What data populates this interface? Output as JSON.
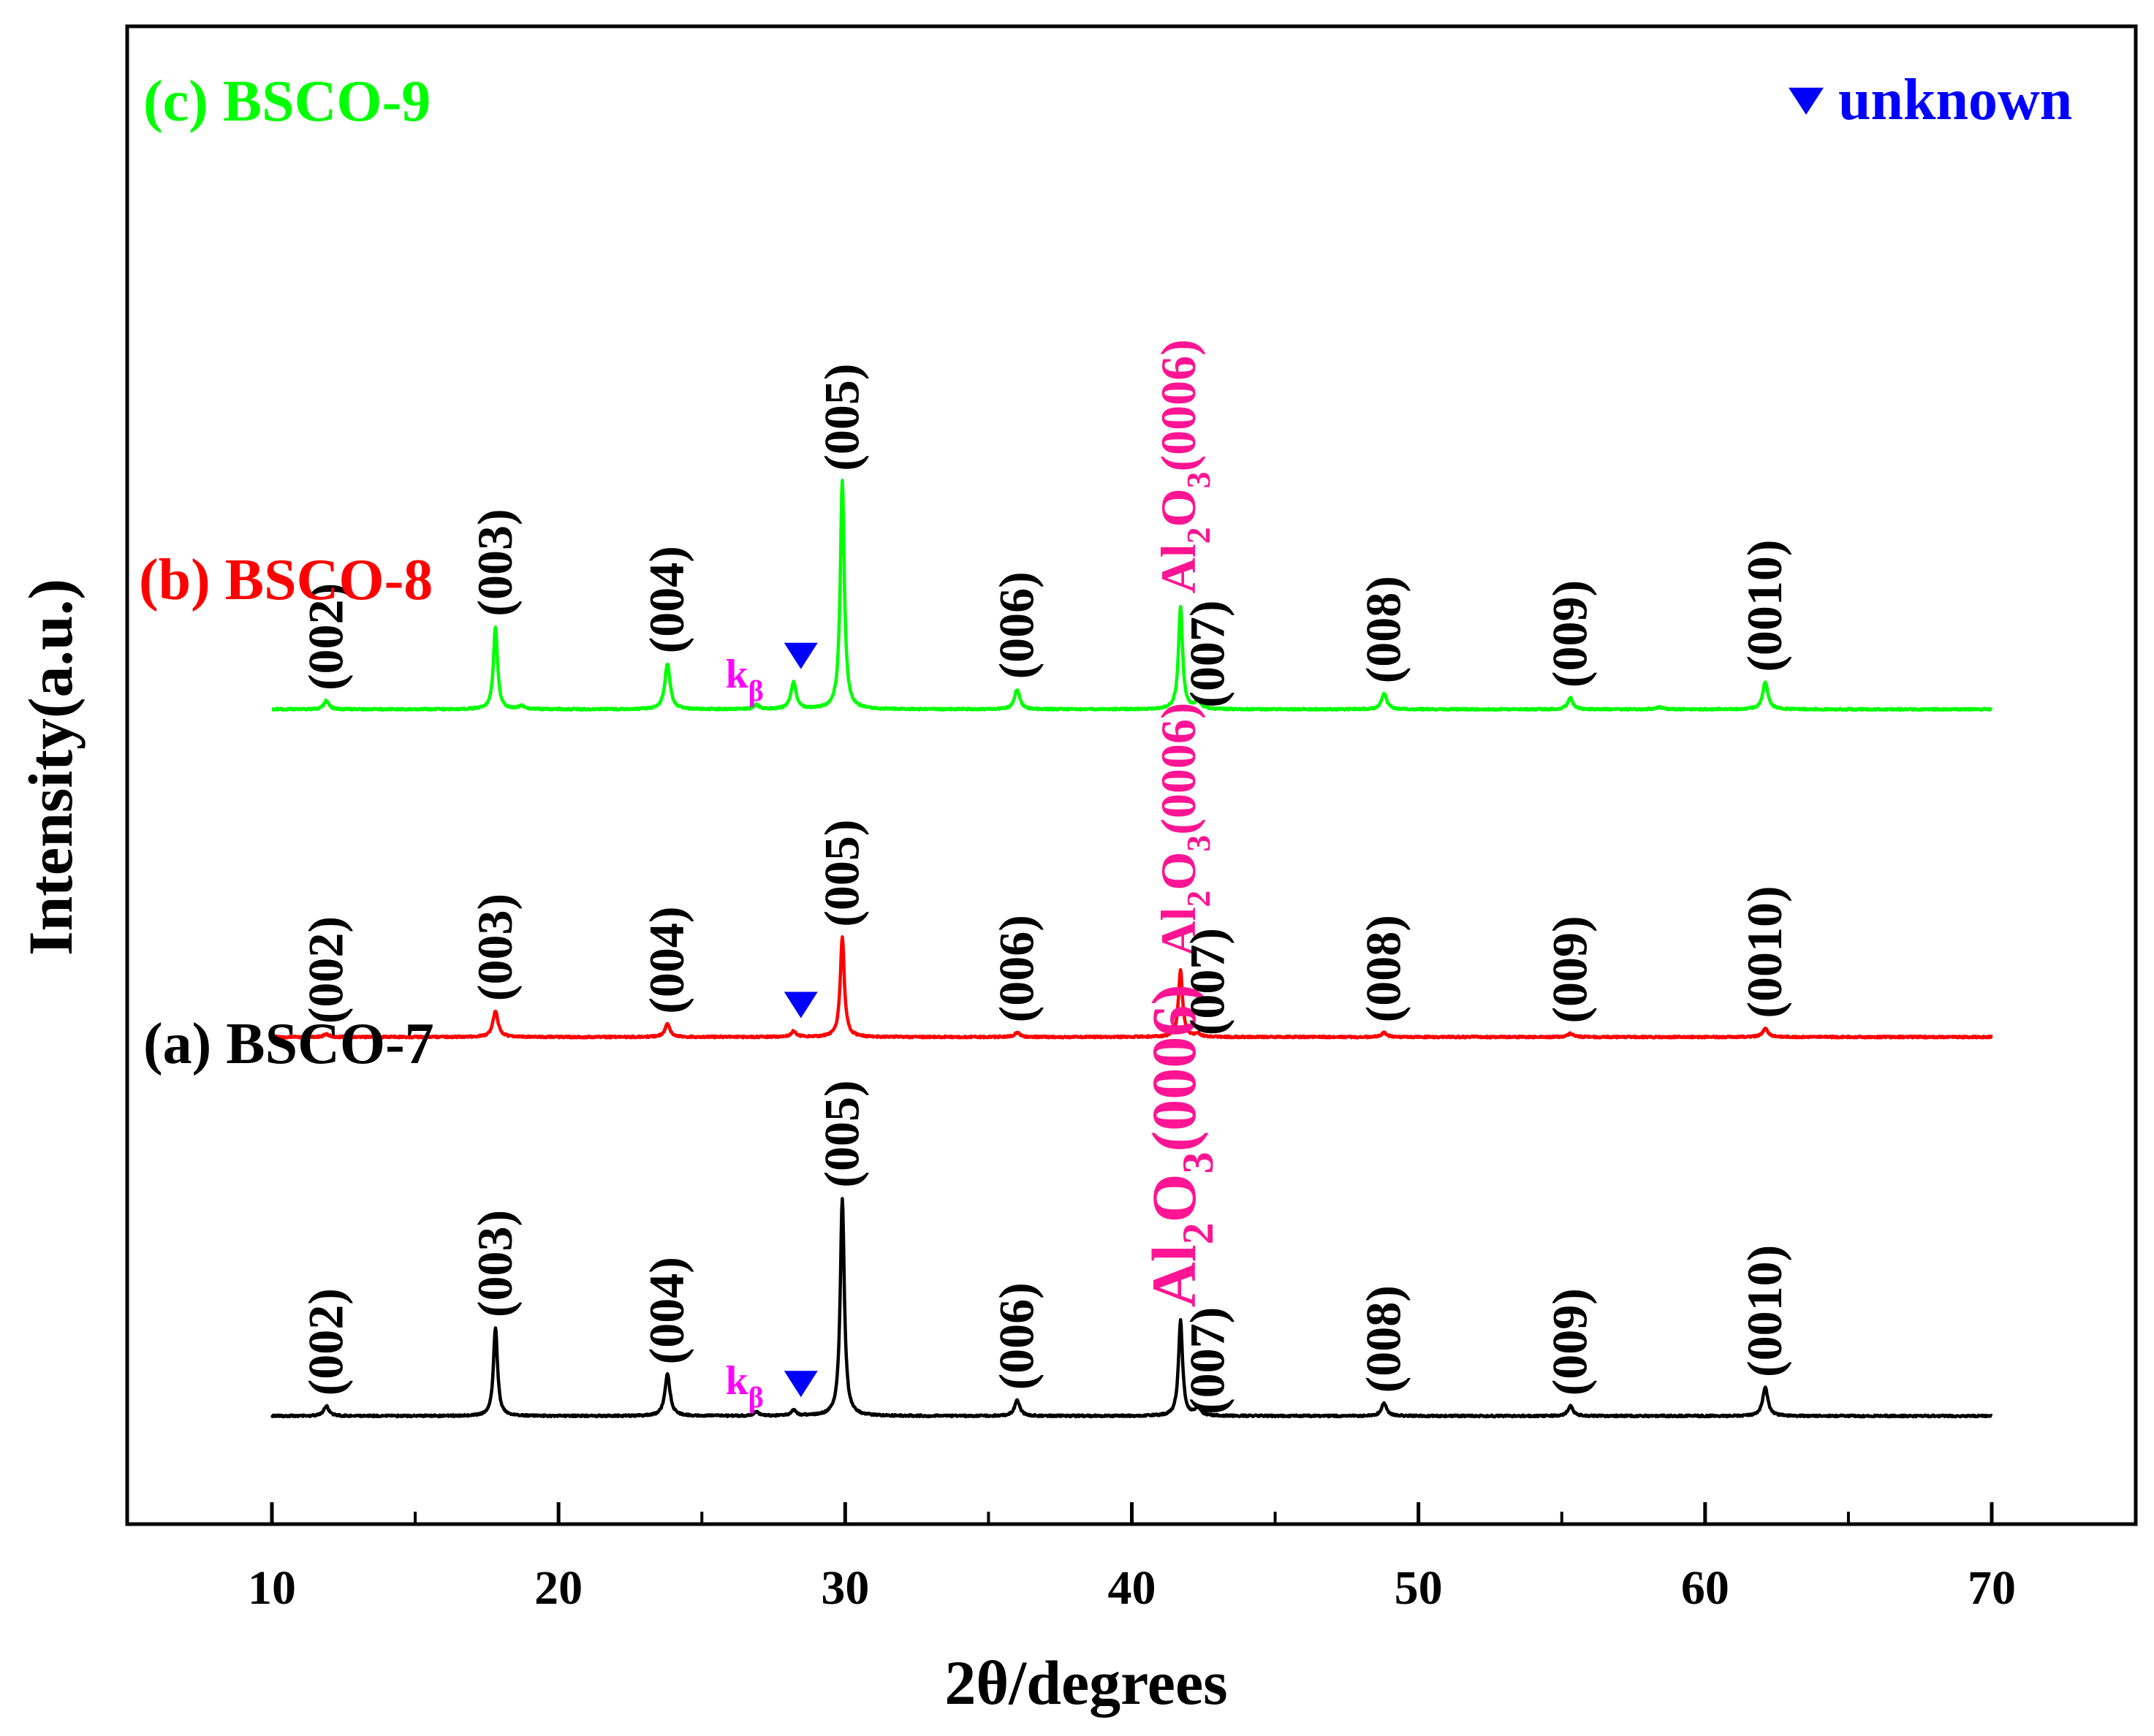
{
  "chart_data": {
    "type": "line",
    "title": "",
    "xlabel": "2θ/degrees",
    "ylabel": "Intensity(a.u.)",
    "xlim": [
      5,
      75
    ],
    "x_ticks": [
      10,
      20,
      30,
      40,
      50,
      60,
      70
    ],
    "x_tick_labels": [
      "10",
      "20",
      "30",
      "40",
      "50",
      "60",
      "70"
    ],
    "x_minor_ticks": [
      15,
      25,
      35,
      45,
      55,
      65
    ],
    "y_ticks_shown": false,
    "grid": false,
    "legend": {
      "symbol": "▼",
      "label": "unknown",
      "color": "#0000ff",
      "placement": "top-right"
    },
    "series": [
      {
        "name": "(a) BSCO-7",
        "color": "#000000",
        "offset": 0,
        "peaks": [
          {
            "x": 11.9,
            "h": 0.35,
            "label": "(002)"
          },
          {
            "x": 17.8,
            "h": 3.1,
            "label": "(003)"
          },
          {
            "x": 23.8,
            "h": 1.45,
            "label": "(004)"
          },
          {
            "x": 26.9,
            "h": 0.15,
            "label": "kβ"
          },
          {
            "x": 28.2,
            "h": 0.2,
            "label": "▼"
          },
          {
            "x": 29.9,
            "h": 7.65,
            "label": "(005)"
          },
          {
            "x": 36.0,
            "h": 0.55,
            "label": "(006)"
          },
          {
            "x": 41.7,
            "h": 3.35,
            "label": "Al2O3(0006)"
          },
          {
            "x": 42.3,
            "h": 0.3,
            "label": "(007)"
          },
          {
            "x": 48.8,
            "h": 0.45,
            "label": "(008)"
          },
          {
            "x": 55.3,
            "h": 0.35,
            "label": "(009)"
          },
          {
            "x": 62.1,
            "h": 1.0,
            "label": "(0010)"
          }
        ]
      },
      {
        "name": "(b) BSCO-8",
        "color": "#ff0000",
        "offset": 13.3,
        "peaks": [
          {
            "x": 11.9,
            "h": 0.1,
            "label": "(002)"
          },
          {
            "x": 17.8,
            "h": 0.9,
            "label": "(003)"
          },
          {
            "x": 23.8,
            "h": 0.45,
            "label": "(004)"
          },
          {
            "x": 28.2,
            "h": 0.2,
            "label": "▼"
          },
          {
            "x": 29.9,
            "h": 3.5,
            "label": "(005)"
          },
          {
            "x": 36.0,
            "h": 0.15,
            "label": "(006)"
          },
          {
            "x": 41.7,
            "h": 2.35,
            "label": "Al2O3(0006)"
          },
          {
            "x": 42.3,
            "h": 0.1,
            "label": "(007)"
          },
          {
            "x": 48.8,
            "h": 0.15,
            "label": "(008)"
          },
          {
            "x": 55.3,
            "h": 0.12,
            "label": "(009)"
          },
          {
            "x": 62.1,
            "h": 0.3,
            "label": "(0010)"
          }
        ]
      },
      {
        "name": "(c) BSCO-9",
        "color": "#00ff00",
        "offset": 24.8,
        "peaks": [
          {
            "x": 11.9,
            "h": 0.3,
            "label": "(002)"
          },
          {
            "x": 17.8,
            "h": 2.9,
            "label": "(003)"
          },
          {
            "x": 18.7,
            "h": 0.12,
            "label": ""
          },
          {
            "x": 23.8,
            "h": 1.6,
            "label": "(004)"
          },
          {
            "x": 26.9,
            "h": 0.15,
            "label": "kβ"
          },
          {
            "x": 28.2,
            "h": 0.95,
            "label": "▼"
          },
          {
            "x": 29.9,
            "h": 8.0,
            "label": "(005)"
          },
          {
            "x": 36.0,
            "h": 0.7,
            "label": "(006)"
          },
          {
            "x": 41.7,
            "h": 3.6,
            "label": "Al2O3(0006)"
          },
          {
            "x": 42.3,
            "h": 0.3,
            "label": "(007)"
          },
          {
            "x": 48.8,
            "h": 0.55,
            "label": "(008)"
          },
          {
            "x": 55.3,
            "h": 0.4,
            "label": "(009)"
          },
          {
            "x": 58.4,
            "h": 0.08,
            "label": ""
          },
          {
            "x": 62.1,
            "h": 0.95,
            "label": "(0010)"
          }
        ]
      }
    ],
    "annotations": {
      "unknown_marker_x": 28.2,
      "kbeta_label_x": 27.1,
      "al2o3_color": "#ff1493",
      "kbeta_color": "#ff00ff"
    }
  }
}
